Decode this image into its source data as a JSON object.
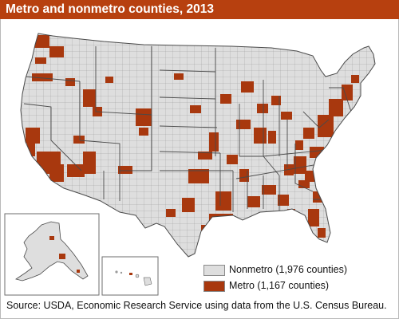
{
  "title": "Metro and nonmetro counties, 2013",
  "colors": {
    "title_bar": "#b7400f",
    "nonmetro": "#dedede",
    "metro": "#a8380e",
    "county_border": "#9a9a9a",
    "state_border": "#4a4a4a"
  },
  "legend": {
    "items": [
      {
        "label": "Nonmetro (1,976 counties)",
        "color": "#dedede"
      },
      {
        "label": "Metro (1,167 counties)",
        "color": "#a8380e"
      }
    ]
  },
  "insets": [
    "Alaska",
    "Hawaii"
  ],
  "source": "Source: USDA, Economic Research Service using data from the U.S. Census Bureau."
}
